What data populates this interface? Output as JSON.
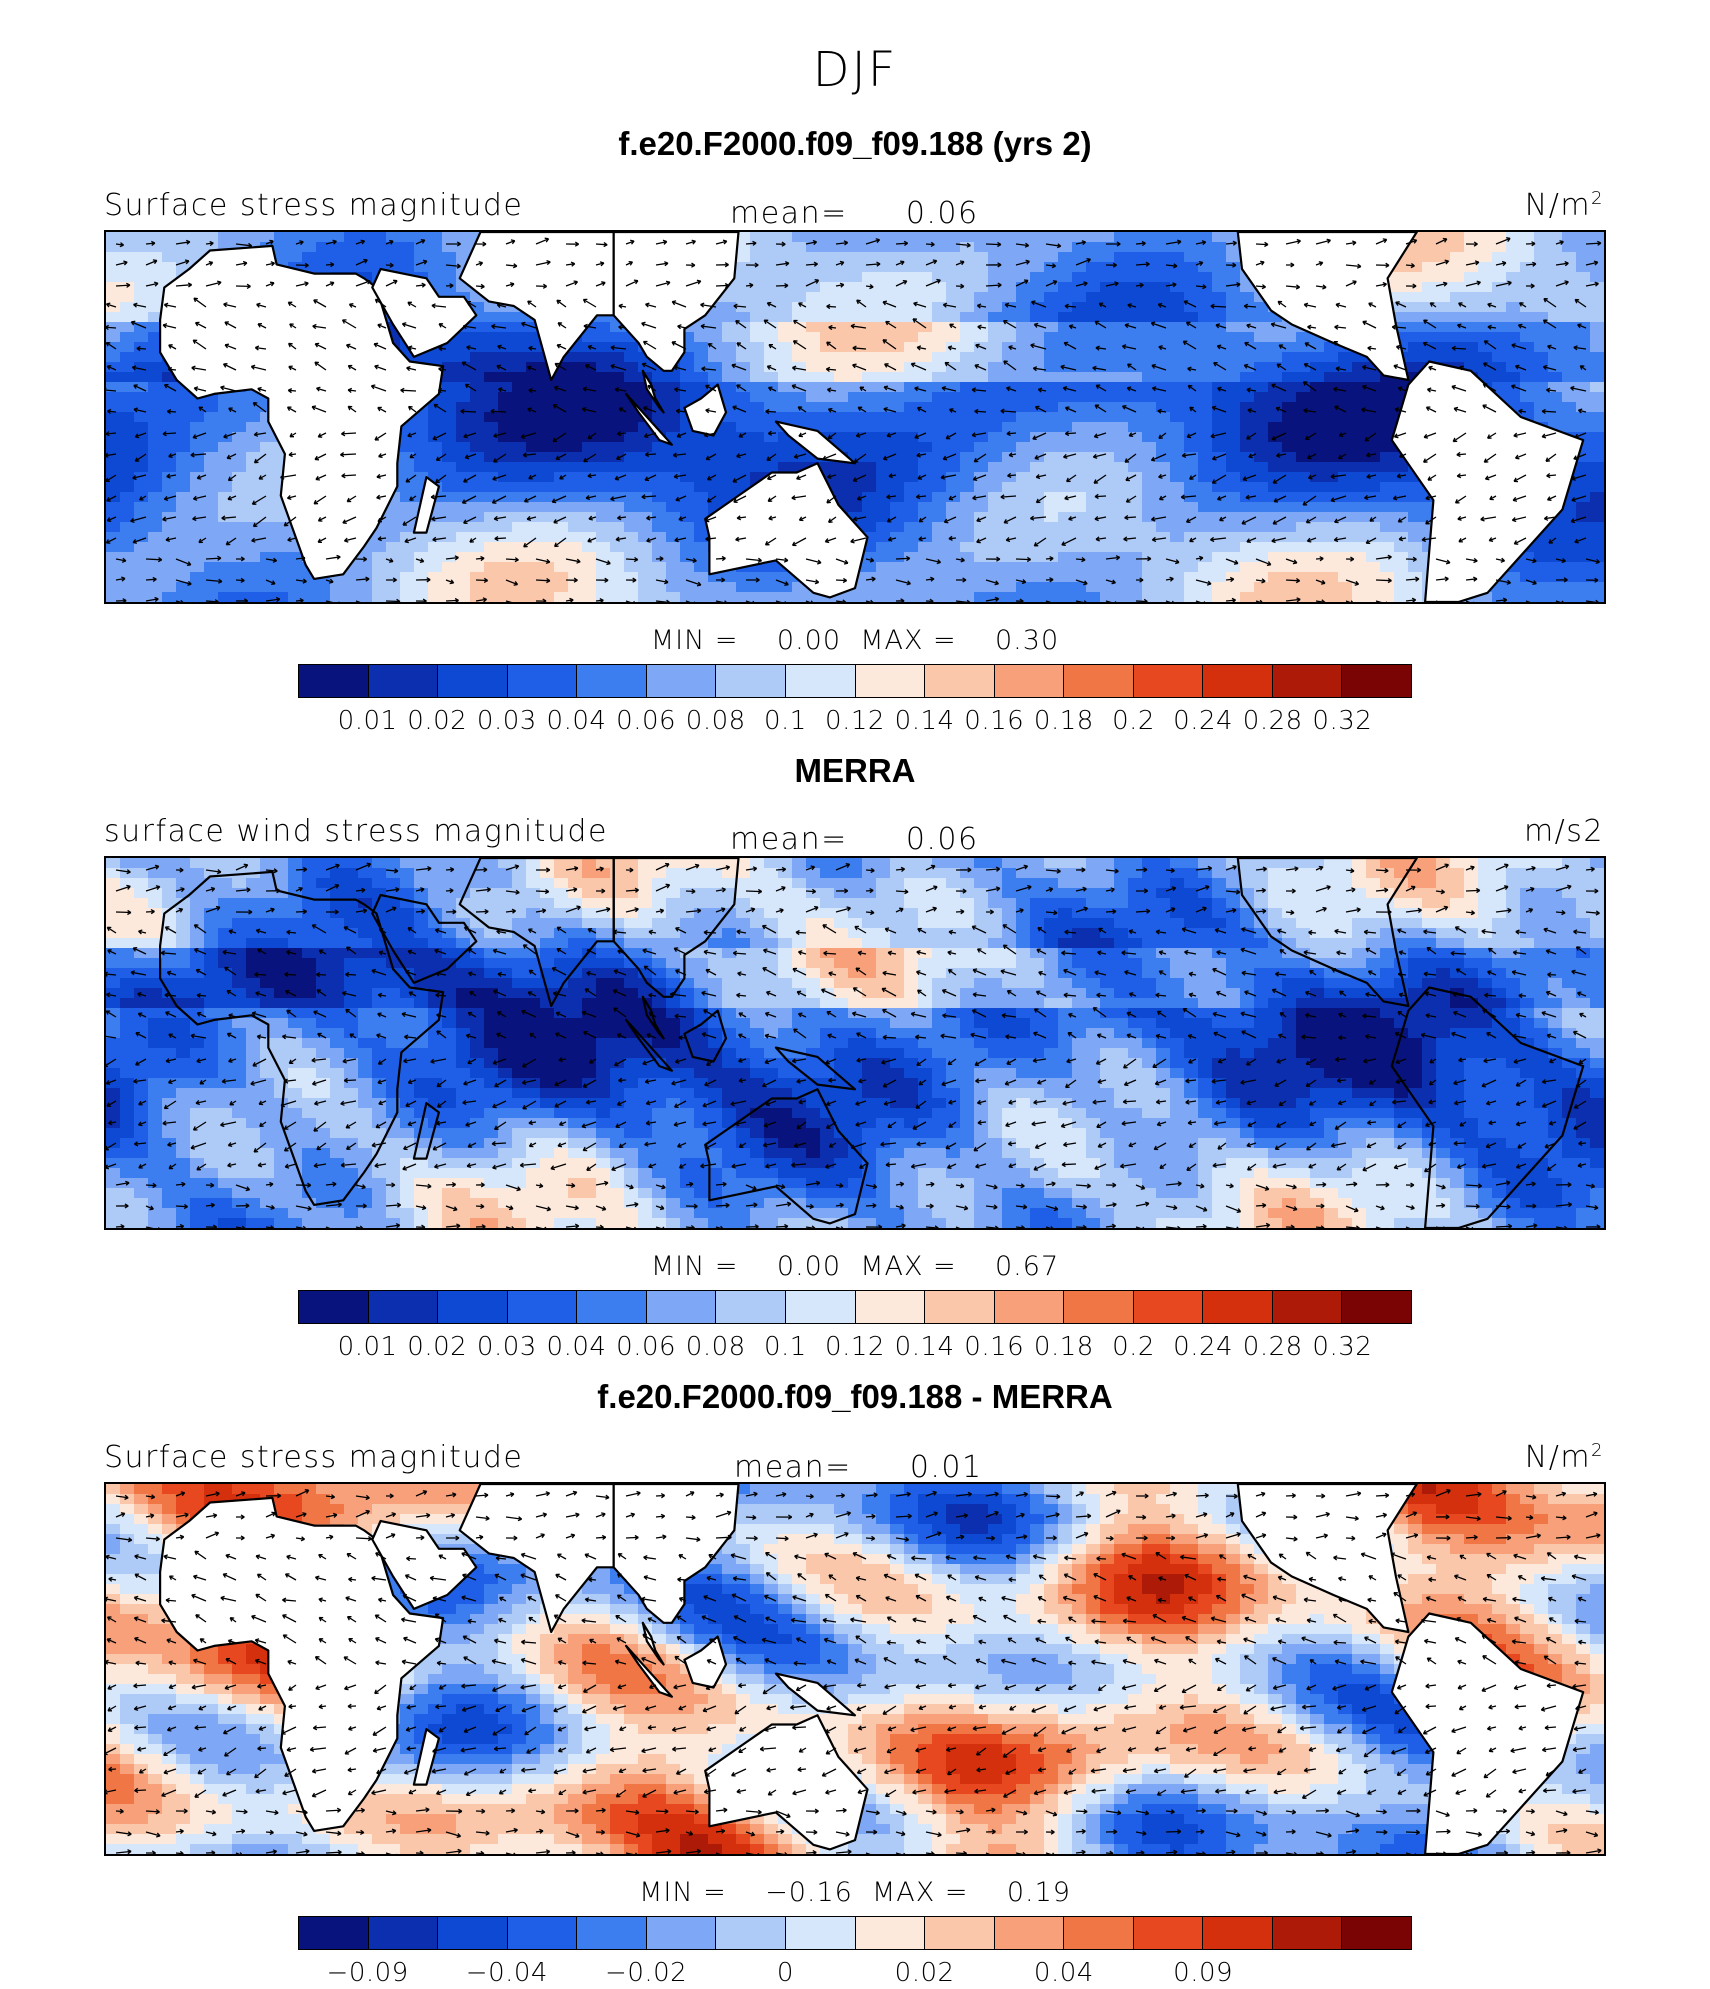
{
  "figure": {
    "suptitle": "DJF"
  },
  "palette": [
    "#08137d",
    "#0c2fb0",
    "#0e49d4",
    "#1f5fe8",
    "#3c7df0",
    "#7ea8f5",
    "#aecbf7",
    "#d6e7fb",
    "#fde9db",
    "#fbc7aa",
    "#f7a07a",
    "#f17646",
    "#e8481f",
    "#d5300d",
    "#ad1a08",
    "#7a0404"
  ],
  "chart_data": [
    {
      "type": "heatmap",
      "title": "f.e20.F2000.f09_f09.188 (yrs 2)",
      "variable": "Surface stress magnitude",
      "units": "N/m",
      "units_sup": "2",
      "mean_label": "mean=",
      "mean": "0.06",
      "min_label": "MIN =",
      "min": "0.00",
      "max_label": "MAX =",
      "max": "0.30",
      "colorbar_levels": [
        "0.01",
        "0.02",
        "0.03",
        "0.04",
        "0.06",
        "0.08",
        "0.1",
        "0.12",
        "0.14",
        "0.16",
        "0.18",
        "0.2",
        "0.24",
        "0.28",
        "0.32"
      ],
      "overlay": "wind stress vectors",
      "land_masked": true
    },
    {
      "type": "heatmap",
      "title": "MERRA",
      "variable": "surface wind stress magnitude",
      "units": "m/s2",
      "units_sup": "",
      "mean_label": "mean=",
      "mean": "0.06",
      "min_label": "MIN =",
      "min": "0.00",
      "max_label": "MAX =",
      "max": "0.67",
      "colorbar_levels": [
        "0.01",
        "0.02",
        "0.03",
        "0.04",
        "0.06",
        "0.08",
        "0.1",
        "0.12",
        "0.14",
        "0.16",
        "0.18",
        "0.2",
        "0.24",
        "0.28",
        "0.32"
      ],
      "overlay": "wind stress vectors",
      "land_masked": false
    },
    {
      "type": "heatmap",
      "title": "f.e20.F2000.f09_f09.188 - MERRA",
      "variable": "Surface stress magnitude",
      "units": "N/m",
      "units_sup": "2",
      "mean_label": "mean=",
      "mean": "0.01",
      "min_label": "MIN =",
      "min": "−0.16",
      "max_label": "MAX =",
      "max": "0.19",
      "colorbar_levels": [
        "−0.09",
        "",
        "−0.04",
        "",
        "−0.02",
        "",
        "0",
        "",
        "0.02",
        "",
        "0.04",
        "",
        "0.09",
        "",
        ""
      ],
      "overlay": "wind stress difference vectors",
      "land_masked": true
    }
  ]
}
